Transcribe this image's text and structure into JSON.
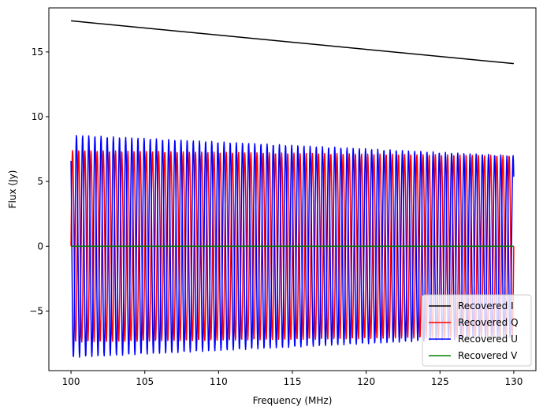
{
  "chart_data": {
    "type": "line",
    "xlabel": "Frequency (MHz)",
    "ylabel": "Flux (Jy)",
    "xlim": [
      98.5,
      131.5
    ],
    "ylim": [
      -9.6,
      18.4
    ],
    "xticks": [
      100,
      105,
      110,
      115,
      120,
      125,
      130
    ],
    "yticks": [
      -5,
      0,
      5,
      10,
      15
    ],
    "grid": false,
    "legend_position": "bottom-right",
    "series": [
      {
        "name": "Recovered I",
        "color": "#000000",
        "kind": "linear",
        "x": [
          100,
          130
        ],
        "y": [
          17.4,
          14.1
        ]
      },
      {
        "name": "Recovered Q",
        "color": "#ff0000",
        "kind": "oscillation",
        "x": [
          100,
          130
        ],
        "amplitude_start": 7.4,
        "amplitude_end": 7.0,
        "cycles": 72,
        "phase_deg": -90
      },
      {
        "name": "Recovered U",
        "color": "#0000ff",
        "kind": "oscillation",
        "x": [
          100,
          130
        ],
        "amplitude_start": 8.6,
        "amplitude_end": 7.0,
        "cycles": 72,
        "phase_deg": 40
      },
      {
        "name": "Recovered V",
        "color": "#008000",
        "kind": "linear",
        "x": [
          100,
          130
        ],
        "y": [
          0,
          0
        ]
      }
    ]
  }
}
